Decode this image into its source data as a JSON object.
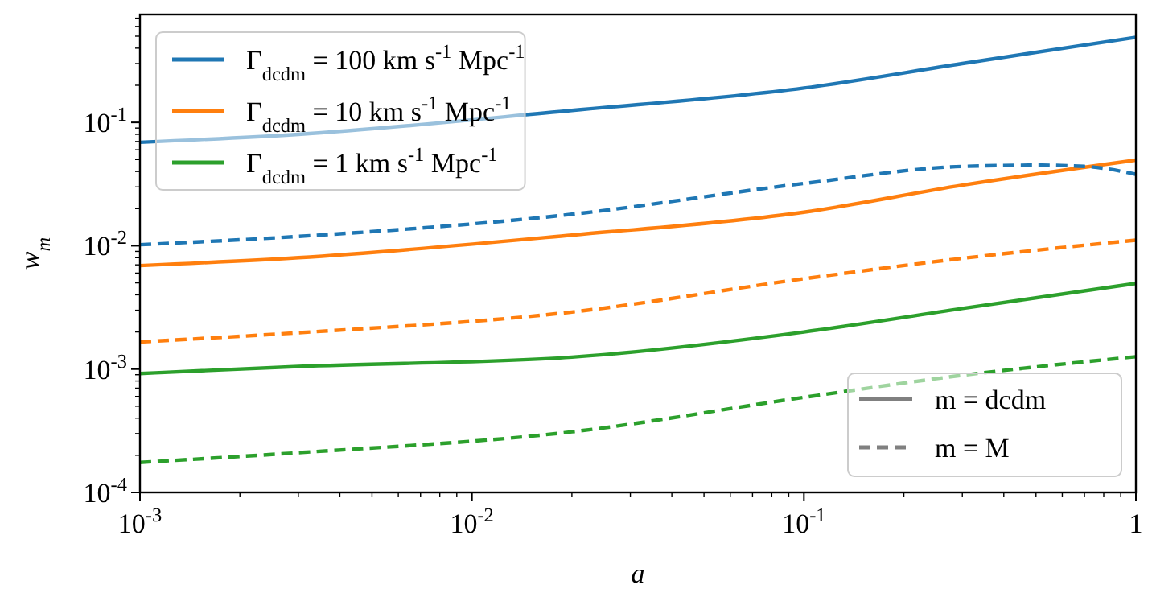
{
  "chart_data": {
    "type": "line",
    "xlabel": "a",
    "ylabel": "w$_{m}$",
    "log": "xy",
    "xlim": [
      0.001,
      1
    ],
    "ylim": [
      0.0001,
      0.75
    ],
    "xticks": [
      {
        "value": 0.001,
        "label": "10$^{-3}$"
      },
      {
        "value": 0.002,
        "label": null
      },
      {
        "value": 0.003,
        "label": null
      },
      {
        "value": 0.004,
        "label": null
      },
      {
        "value": 0.005,
        "label": null
      },
      {
        "value": 0.006,
        "label": null
      },
      {
        "value": 0.007,
        "label": null
      },
      {
        "value": 0.008,
        "label": null
      },
      {
        "value": 0.009,
        "label": null
      },
      {
        "value": 0.01,
        "label": "10$^{-2}$"
      },
      {
        "value": 0.02,
        "label": null
      },
      {
        "value": 0.03,
        "label": null
      },
      {
        "value": 0.04,
        "label": null
      },
      {
        "value": 0.05,
        "label": null
      },
      {
        "value": 0.06,
        "label": null
      },
      {
        "value": 0.07,
        "label": null
      },
      {
        "value": 0.08,
        "label": null
      },
      {
        "value": 0.09,
        "label": null
      },
      {
        "value": 0.1,
        "label": "10$^{-1}$"
      },
      {
        "value": 0.2,
        "label": null
      },
      {
        "value": 0.3,
        "label": null
      },
      {
        "value": 0.4,
        "label": null
      },
      {
        "value": 0.5,
        "label": null
      },
      {
        "value": 0.6,
        "label": null
      },
      {
        "value": 0.7,
        "label": null
      },
      {
        "value": 0.8,
        "label": null
      },
      {
        "value": 0.9,
        "label": null
      },
      1
    ],
    "yticks": [
      {
        "value": 0.0001,
        "label": "10$^{-4}$"
      },
      {
        "value": 0.0002,
        "label": null
      },
      {
        "value": 0.0003,
        "label": null
      },
      {
        "value": 0.0004,
        "label": null
      },
      {
        "value": 0.0005,
        "label": null
      },
      {
        "value": 0.0006,
        "label": null
      },
      {
        "value": 0.0007,
        "label": null
      },
      {
        "value": 0.0008,
        "label": null
      },
      {
        "value": 0.0009,
        "label": null
      },
      {
        "value": 0.001,
        "label": "10$^{-3}$"
      },
      {
        "value": 0.002,
        "label": null
      },
      {
        "value": 0.003,
        "label": null
      },
      {
        "value": 0.004,
        "label": null
      },
      {
        "value": 0.005,
        "label": null
      },
      {
        "value": 0.006,
        "label": null
      },
      {
        "value": 0.007,
        "label": null
      },
      {
        "value": 0.008,
        "label": null
      },
      {
        "value": 0.009,
        "label": null
      },
      {
        "value": 0.01,
        "label": "10$^{-2}$"
      },
      {
        "value": 0.02,
        "label": null
      },
      {
        "value": 0.03,
        "label": null
      },
      {
        "value": 0.04,
        "label": null
      },
      {
        "value": 0.05,
        "label": null
      },
      {
        "value": 0.06,
        "label": null
      },
      {
        "value": 0.07,
        "label": null
      },
      {
        "value": 0.08,
        "label": null
      },
      {
        "value": 0.09,
        "label": null
      },
      {
        "value": 0.1,
        "label": "10$^{-1}$"
      },
      {
        "value": 0.2,
        "label": null
      },
      {
        "value": 0.3,
        "label": null
      },
      {
        "value": 0.4,
        "label": null
      },
      {
        "value": 0.5,
        "label": null
      },
      {
        "value": 0.6,
        "label": null
      },
      {
        "value": 0.7,
        "label": null
      }
    ],
    "x": [
      0.001,
      0.003,
      0.02,
      0.1,
      0.3,
      1
    ],
    "legend": "top left",
    "grid": false,
    "marker": "none",
    "series": [
      {
        "name": "Γ$_{dcdm}$ = 100 km s$^{-1}$ Mpc$^{-1}$",
        "color": "#1f77b4",
        "line_style": "solid",
        "values": [
          0.069,
          0.08,
          0.125,
          0.19,
          0.3,
          0.49
        ]
      },
      {
        "name": "Γ$_{dcdm}$ = 10 km s$^{-1}$ Mpc$^{-1}$",
        "color": "#ff7f0e",
        "line_style": "solid",
        "values": [
          0.0069,
          0.008,
          0.0122,
          0.0187,
          0.031,
          0.0495
        ]
      },
      {
        "name": "Γ$_{dcdm}$ = 1 km s$^{-1}$ Mpc$^{-1}$",
        "color": "#2ca02c",
        "line_style": "solid",
        "values": [
          0.00092,
          0.00105,
          0.00125,
          0.002,
          0.0031,
          0.00495
        ]
      },
      {
        "color": "#1f77b4",
        "line_style": "dashed",
        "x": [
          0.001,
          0.003,
          0.02,
          0.1,
          0.3,
          0.5,
          0.7,
          1
        ],
        "values": [
          0.0102,
          0.0119,
          0.018,
          0.032,
          0.044,
          0.045,
          0.044,
          0.038
        ]
      },
      {
        "color": "#ff7f0e",
        "line_style": "dashed",
        "values": [
          0.00166,
          0.00197,
          0.0029,
          0.0054,
          0.0079,
          0.0111
        ]
      },
      {
        "color": "#2ca02c",
        "line_style": "dashed",
        "values": [
          0.000175,
          0.00021,
          0.00031,
          0.00059,
          0.00089,
          0.00126
        ]
      }
    ],
    "annotations": [
      "m = dcdm",
      "m = M"
    ]
  }
}
